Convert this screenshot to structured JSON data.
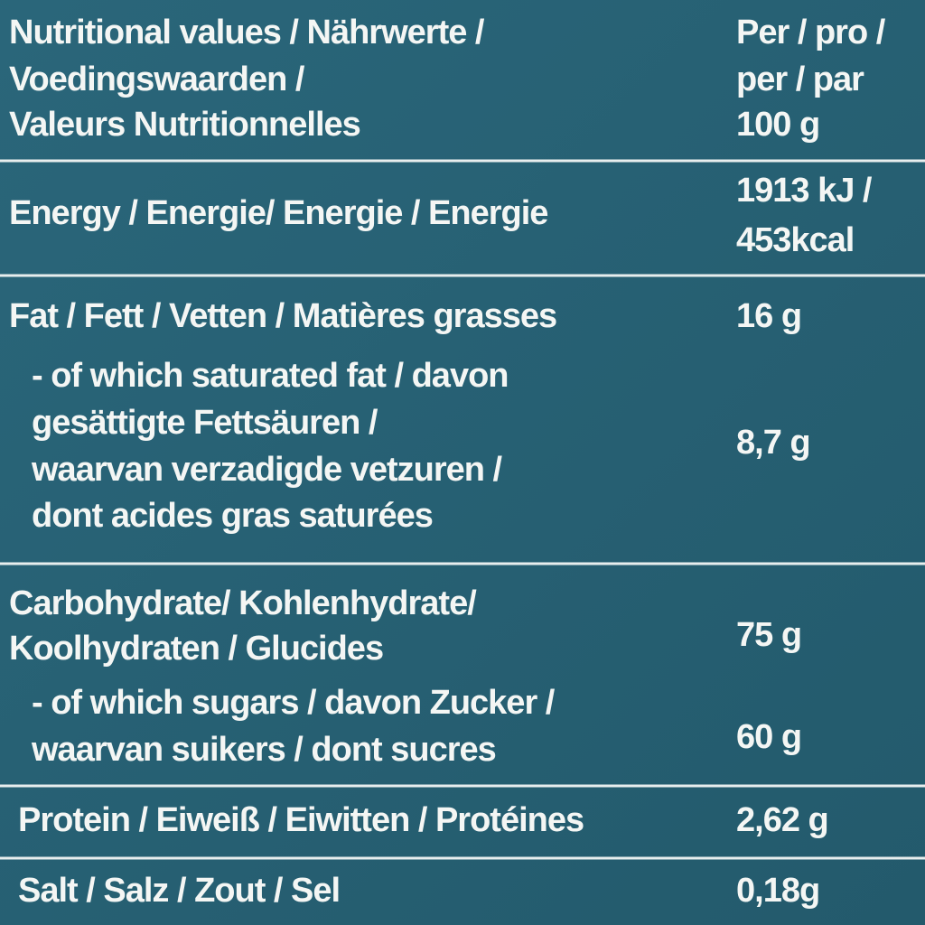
{
  "header": {
    "label": [
      "Nutritional values / Nährwerte /",
      "Voedingswaarden /",
      "Valeurs Nutritionnelles"
    ],
    "unit": [
      "Per / pro /",
      "per / par",
      "100 g"
    ]
  },
  "rows": [
    {
      "label": [
        "Energy / Energie/ Energie / Energie"
      ],
      "value": [
        "1913 kJ /",
        "453kcal"
      ]
    },
    {
      "label": [
        "Fat / Fett / Vetten / Matières grasses"
      ],
      "value": [
        "16 g"
      ]
    },
    {
      "label": [
        "- of which saturated fat / davon",
        "gesättigte Fettsäuren /",
        "waarvan verzadigde vetzuren /",
        "dont acides gras saturées"
      ],
      "value": [
        "8,7 g"
      ]
    },
    {
      "label": [
        "Carbohydrate/ Kohlenhydrate/",
        "Koolhydraten / Glucides"
      ],
      "value": [
        "75 g"
      ]
    },
    {
      "label": [
        "- of which sugars / davon Zucker /",
        "waarvan suikers / dont sucres"
      ],
      "value": [
        "60 g"
      ]
    },
    {
      "label": [
        "Protein / Eiweiß / Eiwitten / Protéines"
      ],
      "value": [
        "2,62 g"
      ]
    },
    {
      "label": [
        "Salt / Salz / Zout / Sel"
      ],
      "value": [
        "0,18g"
      ]
    }
  ]
}
